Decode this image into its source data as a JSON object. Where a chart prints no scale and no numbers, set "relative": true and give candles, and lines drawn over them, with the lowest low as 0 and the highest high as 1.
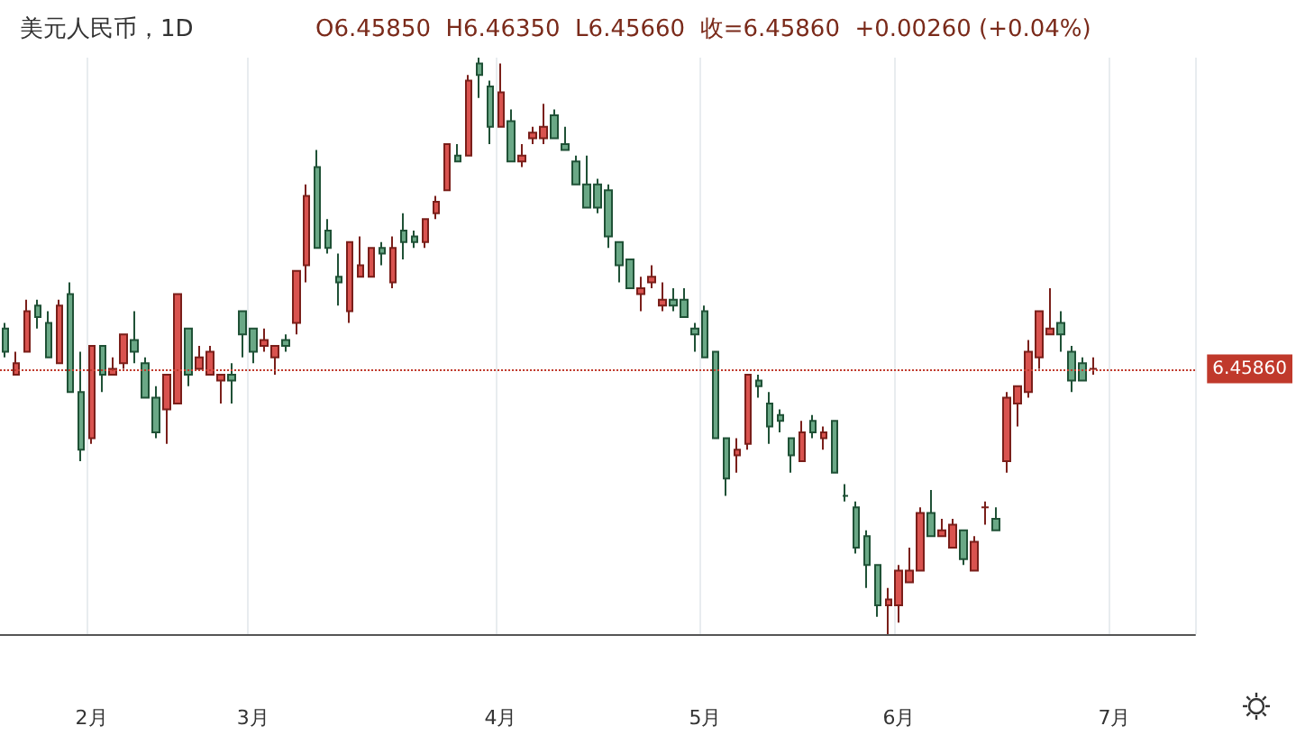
{
  "chart_data": {
    "type": "candlestick",
    "title": "美元人民币，1D",
    "subtitle": "O6.45850  H6.46350  L6.45660  收=6.45860  +0.00260 (+0.04%)",
    "relative": true,
    "grid": "x",
    "categories": [
      null,
      null,
      null,
      null,
      null,
      null,
      null,
      null,
      "2月",
      null,
      null,
      null,
      null,
      null,
      null,
      null,
      null,
      null,
      null,
      null,
      null,
      null,
      null,
      "3月",
      null,
      null,
      null,
      null,
      null,
      null,
      null,
      null,
      null,
      null,
      null,
      null,
      null,
      null,
      null,
      null,
      null,
      null,
      null,
      null,
      null,
      null,
      "4月",
      null,
      null,
      null,
      null,
      null,
      null,
      null,
      null,
      null,
      null,
      null,
      null,
      null,
      null,
      null,
      null,
      null,
      null,
      "5月",
      null,
      null,
      null,
      null,
      null,
      null,
      null,
      null,
      null,
      null,
      null,
      null,
      null,
      null,
      null,
      null,
      null,
      "6月",
      null,
      null,
      null,
      null,
      null,
      null,
      null,
      null,
      null,
      null,
      null,
      null,
      null,
      null,
      null,
      null,
      null,
      null,
      null,
      "7月",
      null,
      null,
      null,
      null,
      null,
      null,
      null
    ],
    "ohlc": [
      [
        0.53,
        0.54,
        0.48,
        0.49
      ],
      [
        0.45,
        0.49,
        0.45,
        0.47
      ],
      [
        0.49,
        0.58,
        0.49,
        0.56
      ],
      [
        0.57,
        0.58,
        0.53,
        0.55
      ],
      [
        0.54,
        0.56,
        0.48,
        0.48
      ],
      [
        0.47,
        0.58,
        0.47,
        0.57
      ],
      [
        0.59,
        0.61,
        0.42,
        0.42
      ],
      [
        0.42,
        0.49,
        0.3,
        0.32
      ],
      [
        0.34,
        0.5,
        0.33,
        0.5
      ],
      [
        0.5,
        0.5,
        0.42,
        0.45
      ],
      [
        0.45,
        0.48,
        0.45,
        0.46
      ],
      [
        0.47,
        0.52,
        0.46,
        0.52
      ],
      [
        0.51,
        0.56,
        0.47,
        0.49
      ],
      [
        0.47,
        0.48,
        0.41,
        0.41
      ],
      [
        0.41,
        0.43,
        0.34,
        0.35
      ],
      [
        0.39,
        0.45,
        0.33,
        0.45
      ],
      [
        0.4,
        0.59,
        0.4,
        0.59
      ],
      [
        0.53,
        0.53,
        0.43,
        0.45
      ],
      [
        0.46,
        0.5,
        0.46,
        0.48
      ],
      [
        0.45,
        0.5,
        0.45,
        0.49
      ],
      [
        0.44,
        0.45,
        0.4,
        0.45
      ],
      [
        0.45,
        0.47,
        0.4,
        0.44
      ],
      [
        0.56,
        0.56,
        0.48,
        0.52
      ],
      [
        0.53,
        0.53,
        0.47,
        0.49
      ],
      [
        0.5,
        0.53,
        0.49,
        0.51
      ],
      [
        0.48,
        0.5,
        0.45,
        0.5
      ],
      [
        0.51,
        0.52,
        0.49,
        0.5
      ],
      [
        0.54,
        0.63,
        0.52,
        0.63
      ],
      [
        0.64,
        0.78,
        0.61,
        0.76
      ],
      [
        0.81,
        0.84,
        0.67,
        0.67
      ],
      [
        0.7,
        0.72,
        0.66,
        0.67
      ],
      [
        0.62,
        0.66,
        0.57,
        0.61
      ],
      [
        0.56,
        0.68,
        0.54,
        0.68
      ],
      [
        0.62,
        0.69,
        0.62,
        0.64
      ],
      [
        0.62,
        0.67,
        0.62,
        0.67
      ],
      [
        0.67,
        0.68,
        0.64,
        0.66
      ],
      [
        0.61,
        0.69,
        0.6,
        0.67
      ],
      [
        0.7,
        0.73,
        0.65,
        0.68
      ],
      [
        0.69,
        0.7,
        0.67,
        0.68
      ],
      [
        0.68,
        0.72,
        0.67,
        0.72
      ],
      [
        0.73,
        0.76,
        0.72,
        0.75
      ],
      [
        0.77,
        0.85,
        0.77,
        0.85
      ],
      [
        0.83,
        0.85,
        0.82,
        0.82
      ],
      [
        0.83,
        0.97,
        0.83,
        0.96
      ],
      [
        0.99,
        1,
        0.93,
        0.97
      ],
      [
        0.95,
        0.96,
        0.85,
        0.88
      ],
      [
        0.88,
        0.99,
        0.88,
        0.94
      ],
      [
        0.89,
        0.91,
        0.82,
        0.82
      ],
      [
        0.82,
        0.85,
        0.81,
        0.83
      ],
      [
        0.86,
        0.88,
        0.85,
        0.87
      ],
      [
        0.86,
        0.92,
        0.85,
        0.88
      ],
      [
        0.9,
        0.91,
        0.86,
        0.86
      ],
      [
        0.85,
        0.88,
        0.84,
        0.84
      ],
      [
        0.82,
        0.83,
        0.78,
        0.78
      ],
      [
        0.78,
        0.83,
        0.74,
        0.74
      ],
      [
        0.78,
        0.79,
        0.73,
        0.74
      ],
      [
        0.77,
        0.78,
        0.67,
        0.69
      ],
      [
        0.68,
        0.68,
        0.61,
        0.64
      ],
      [
        0.65,
        0.65,
        0.6,
        0.6
      ],
      [
        0.59,
        0.62,
        0.56,
        0.6
      ],
      [
        0.61,
        0.64,
        0.6,
        0.62
      ],
      [
        0.57,
        0.61,
        0.56,
        0.58
      ],
      [
        0.58,
        0.6,
        0.56,
        0.57
      ],
      [
        0.58,
        0.6,
        0.55,
        0.55
      ],
      [
        0.53,
        0.54,
        0.49,
        0.52
      ],
      [
        0.56,
        0.57,
        0.48,
        0.48
      ],
      [
        0.49,
        0.49,
        0.34,
        0.34
      ],
      [
        0.34,
        0.34,
        0.24,
        0.27
      ],
      [
        0.31,
        0.34,
        0.28,
        0.32
      ],
      [
        0.33,
        0.45,
        0.32,
        0.45
      ],
      [
        0.44,
        0.45,
        0.41,
        0.43
      ],
      [
        0.4,
        0.42,
        0.33,
        0.36
      ],
      [
        0.38,
        0.39,
        0.35,
        0.37
      ],
      [
        0.34,
        0.34,
        0.28,
        0.31
      ],
      [
        0.3,
        0.37,
        0.3,
        0.35
      ],
      [
        0.37,
        0.38,
        0.34,
        0.35
      ],
      [
        0.34,
        0.36,
        0.32,
        0.35
      ],
      [
        0.37,
        0.37,
        0.28,
        0.28
      ],
      [
        0.24,
        0.26,
        0.23,
        0.24
      ],
      [
        0.22,
        0.23,
        0.14,
        0.15
      ],
      [
        0.17,
        0.18,
        0.08,
        0.12
      ],
      [
        0.12,
        0.12,
        0.03,
        0.05
      ],
      [
        0.05,
        0.08,
        0,
        0.06
      ],
      [
        0.05,
        0.12,
        0.02,
        0.11
      ],
      [
        0.09,
        0.15,
        0.09,
        0.11
      ],
      [
        0.11,
        0.22,
        0.11,
        0.21
      ],
      [
        0.21,
        0.25,
        0.17,
        0.17
      ],
      [
        0.17,
        0.2,
        0.17,
        0.18
      ],
      [
        0.15,
        0.2,
        0.15,
        0.19
      ],
      [
        0.18,
        0.18,
        0.12,
        0.13
      ],
      [
        0.11,
        0.17,
        0.11,
        0.16
      ],
      [
        0.22,
        0.23,
        0.19,
        0.22
      ],
      [
        0.2,
        0.22,
        0.18,
        0.18
      ],
      [
        0.3,
        0.42,
        0.28,
        0.41
      ],
      [
        0.4,
        0.43,
        0.36,
        0.43
      ],
      [
        0.42,
        0.51,
        0.41,
        0.49
      ],
      [
        0.48,
        0.56,
        0.46,
        0.56
      ],
      [
        0.52,
        0.6,
        0.52,
        0.53
      ],
      [
        0.54,
        0.56,
        0.49,
        0.52
      ],
      [
        0.49,
        0.5,
        0.42,
        0.44
      ],
      [
        0.47,
        0.48,
        0.44,
        0.44
      ],
      [
        0.46,
        0.48,
        0.45,
        0.46
      ],
      null,
      null,
      null,
      null,
      null,
      null,
      null,
      null,
      null
    ],
    "annotations": [
      "6.45860"
    ],
    "ref_lines": [
      {
        "axis": "y",
        "value": 0.46,
        "color": "#c0392b",
        "line_style": "dotted"
      }
    ]
  }
}
